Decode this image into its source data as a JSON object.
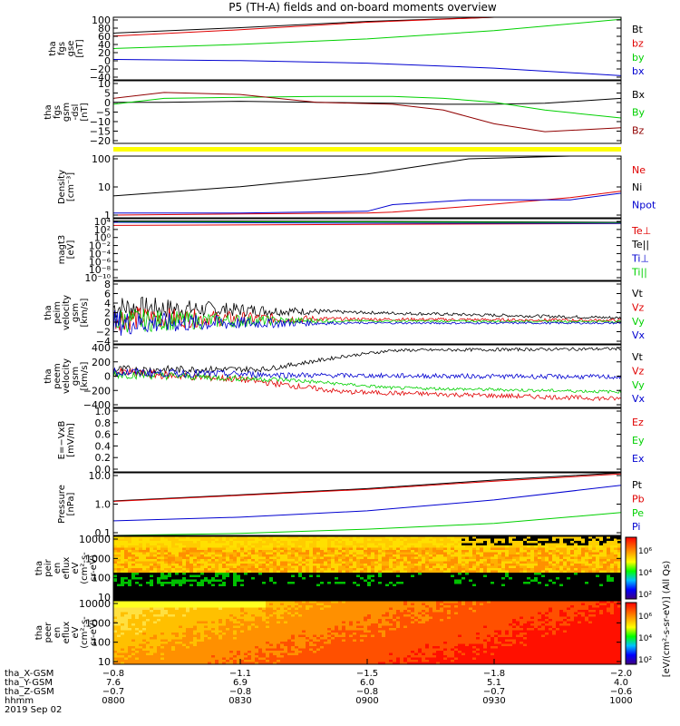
{
  "title": "P5 (TH-A) fields and on-board moments overview",
  "colors": {
    "black": "#000000",
    "red": "#e00000",
    "green": "#00d000",
    "blue": "#0000d0",
    "darkred": "#900000",
    "yellow": "#ffff00"
  },
  "chart_data": [
    {
      "id": "fgs_gse",
      "type": "line",
      "ylabel_lines": [
        "tha",
        "fgs",
        "gse",
        "[nT]"
      ],
      "yticks": [
        "100",
        "80",
        "60",
        "40",
        "20",
        "0",
        "−20",
        "−40"
      ],
      "ylim": [
        -50,
        100
      ],
      "x": [
        0,
        0.25,
        0.5,
        0.75,
        1.0
      ],
      "legend": [
        {
          "label": "Bt",
          "color": "black"
        },
        {
          "label": "bz",
          "color": "red"
        },
        {
          "label": "by",
          "color": "green"
        },
        {
          "label": "bx",
          "color": "blue"
        }
      ],
      "series": [
        {
          "color": "black",
          "values": [
            62,
            75,
            90,
            100,
            100
          ]
        },
        {
          "color": "red",
          "values": [
            55,
            70,
            88,
            100,
            100
          ]
        },
        {
          "color": "green",
          "values": [
            25,
            35,
            48,
            68,
            95
          ]
        },
        {
          "color": "blue",
          "values": [
            -1,
            -4,
            -10,
            -22,
            -40
          ]
        }
      ]
    },
    {
      "id": "fgs_gsm",
      "type": "line",
      "ylabel_lines": [
        "tha",
        "fgs",
        "gsm",
        "-dsl",
        "[nT]"
      ],
      "yticks": [
        "10",
        "5",
        "0",
        "−5",
        "−10",
        "−15",
        "−20"
      ],
      "ylim": [
        -22,
        10
      ],
      "x": [
        0,
        0.1,
        0.25,
        0.4,
        0.55,
        0.65,
        0.75,
        0.85,
        1.0
      ],
      "legend": [
        {
          "label": "Bx",
          "color": "black"
        },
        {
          "label": "By",
          "color": "green"
        },
        {
          "label": "Bz",
          "color": "darkred"
        }
      ],
      "series": [
        {
          "color": "black",
          "values": [
            -1,
            -1,
            -0.5,
            -1,
            -1.5,
            -2,
            -2,
            -1.5,
            1
          ]
        },
        {
          "color": "green",
          "values": [
            -2,
            1,
            1.5,
            2,
            2,
            1,
            -1,
            -5,
            -9
          ]
        },
        {
          "color": "darkred",
          "values": [
            1,
            4,
            3,
            -1,
            -2,
            -5,
            -12,
            -16,
            -14
          ]
        }
      ]
    },
    {
      "id": "quality_bar",
      "type": "bar_flag"
    },
    {
      "id": "density",
      "type": "line",
      "ylog": true,
      "ylabel_lines": [
        "Density",
        "[cm⁻³]"
      ],
      "yticks": [
        "100",
        "10",
        "1"
      ],
      "ylim": [
        0.3,
        200
      ],
      "x": [
        0,
        0.25,
        0.5,
        0.55,
        0.7,
        0.9,
        1.0
      ],
      "legend": [
        {
          "label": "Ne",
          "color": "red"
        },
        {
          "label": "Ni",
          "color": "black"
        },
        {
          "label": "Npot",
          "color": "blue"
        }
      ],
      "series": [
        {
          "color": "black",
          "values": [
            3,
            8,
            30,
            45,
            150,
            200,
            200
          ]
        },
        {
          "color": "red",
          "values": [
            0.4,
            0.45,
            0.5,
            0.55,
            1.0,
            2.5,
            5.0
          ]
        },
        {
          "color": "blue",
          "values": [
            0.5,
            0.5,
            0.6,
            1.2,
            2.0,
            2.0,
            4.0
          ]
        }
      ]
    },
    {
      "id": "temp",
      "type": "line",
      "ylog": true,
      "ylabel_lines": [
        "magt3",
        "[eV]"
      ],
      "yticks": [
        "10⁴",
        "10²",
        "10⁰",
        "10⁻²",
        "10⁻⁴",
        "10⁻⁶",
        "10⁻⁸",
        "10⁻¹⁰"
      ],
      "ylim": [
        1e-10,
        10000
      ],
      "x": [
        0,
        0.5,
        1.0
      ],
      "legend": [
        {
          "label": "Te⊥",
          "color": "red"
        },
        {
          "label": "Te||",
          "color": "black"
        },
        {
          "label": "Ti⊥",
          "color": "blue"
        },
        {
          "label": "Ti||",
          "color": "green"
        }
      ],
      "series": [
        {
          "color": "black",
          "values": [
            3000,
            2500,
            1500
          ]
        },
        {
          "color": "green",
          "values": [
            2000,
            1800,
            1200
          ]
        },
        {
          "color": "red",
          "values": [
            300,
            500,
            800
          ]
        },
        {
          "color": "blue",
          "values": [
            1500,
            1000,
            900
          ]
        }
      ]
    },
    {
      "id": "peim",
      "type": "noisy",
      "ylabel_lines": [
        "tha",
        "peim",
        "velocity",
        "gsm",
        "[km/s]"
      ],
      "yticks": [
        "8",
        "6",
        "4",
        "2",
        "0",
        "−2",
        "−4"
      ],
      "ylim": [
        -4,
        8
      ],
      "legend": [
        {
          "label": "Vt",
          "color": "black"
        },
        {
          "label": "Vz",
          "color": "red"
        },
        {
          "label": "Vy",
          "color": "green"
        },
        {
          "label": "Vx",
          "color": "blue"
        }
      ],
      "series": [
        {
          "color": "black",
          "start": 3.0,
          "end": 1.0,
          "noise": [
            2.5,
            0.3
          ]
        },
        {
          "color": "red",
          "start": 1.0,
          "end": 0.5,
          "noise": [
            2.5,
            0.3
          ]
        },
        {
          "color": "green",
          "start": 0.5,
          "end": 0.3,
          "noise": [
            2.5,
            0.2
          ]
        },
        {
          "color": "blue",
          "start": 0.0,
          "end": 0.0,
          "noise": [
            2.5,
            0.2
          ]
        }
      ]
    },
    {
      "id": "peem",
      "type": "noisy",
      "ylabel_lines": [
        "tha",
        "peem",
        "velocity",
        "gsm",
        "[km/s]"
      ],
      "yticks": [
        "400",
        "200",
        "0",
        "−200",
        "−400"
      ],
      "ylim": [
        -400,
        400
      ],
      "legend": [
        {
          "label": "Vt",
          "color": "black"
        },
        {
          "label": "Vz",
          "color": "red"
        },
        {
          "label": "Vy",
          "color": "green"
        },
        {
          "label": "Vx",
          "color": "blue"
        }
      ],
      "series": [
        {
          "color": "black",
          "profile": [
            [
              0,
              80
            ],
            [
              0.3,
              90
            ],
            [
              0.45,
              250
            ],
            [
              0.55,
              330
            ],
            [
              1.0,
              350
            ]
          ],
          "noise": [
            60,
            20
          ]
        },
        {
          "color": "red",
          "profile": [
            [
              0,
              50
            ],
            [
              0.25,
              -40
            ],
            [
              0.45,
              -200
            ],
            [
              1.0,
              -290
            ]
          ],
          "noise": [
            60,
            30
          ]
        },
        {
          "color": "green",
          "profile": [
            [
              0,
              30
            ],
            [
              0.35,
              -50
            ],
            [
              0.55,
              -150
            ],
            [
              1.0,
              -200
            ]
          ],
          "noise": [
            60,
            20
          ]
        },
        {
          "color": "blue",
          "profile": [
            [
              0,
              50
            ],
            [
              0.4,
              10
            ],
            [
              1.0,
              -10
            ]
          ],
          "noise": [
            60,
            30
          ]
        }
      ]
    },
    {
      "id": "efield",
      "type": "empty",
      "ylabel_lines": [
        "E=−VxB",
        "[mV/m]"
      ],
      "yticks": [
        "1.0",
        "0.8",
        "0.6",
        "0.4",
        "0.2",
        "0.0"
      ],
      "ylim": [
        0,
        1
      ],
      "legend": [
        {
          "label": "Ez",
          "color": "red"
        },
        {
          "label": "Ey",
          "color": "green"
        },
        {
          "label": "Ex",
          "color": "blue"
        }
      ]
    },
    {
      "id": "pressure",
      "type": "line",
      "ylog": true,
      "ylabel_lines": [
        "Pressure",
        "[nPa]"
      ],
      "yticks": [
        "10.0",
        "1.0",
        "0.1"
      ],
      "ylim": [
        0.04,
        40
      ],
      "x": [
        0,
        0.25,
        0.5,
        0.75,
        1.0
      ],
      "legend": [
        {
          "label": "Pt",
          "color": "black"
        },
        {
          "label": "Pb",
          "color": "red"
        },
        {
          "label": "Pe",
          "color": "green"
        },
        {
          "label": "Pi",
          "color": "blue"
        }
      ],
      "series": [
        {
          "color": "black",
          "values": [
            1.8,
            3.5,
            7,
            18,
            40
          ]
        },
        {
          "color": "red",
          "values": [
            1.7,
            3.3,
            6.5,
            16,
            35
          ]
        },
        {
          "color": "blue",
          "values": [
            0.2,
            0.3,
            0.6,
            2,
            10
          ]
        },
        {
          "color": "green",
          "values": [
            0.04,
            0.05,
            0.08,
            0.15,
            0.5
          ]
        }
      ]
    },
    {
      "id": "peir",
      "type": "spectrogram",
      "ylabel_lines": [
        "tha",
        "peir",
        "en",
        "eflux",
        "eV",
        "(cm²-s-",
        "sr-eV)"
      ],
      "yticks": [
        "10000",
        "1000",
        "100",
        "10"
      ],
      "ylim": [
        5,
        25000
      ]
    },
    {
      "id": "peer",
      "type": "spectrogram",
      "ylabel_lines": [
        "tha",
        "peer",
        "en",
        "eflux",
        "eV",
        "(cm²-s-",
        "sr-eV)"
      ],
      "yticks": [
        "10000",
        "1000",
        "100",
        "10"
      ],
      "ylim": [
        5,
        25000
      ]
    }
  ],
  "colorbar": {
    "ticks": [
      "10⁶",
      "10⁴",
      "10²"
    ],
    "label": "[eV/(cm²-s-sr-eV)] (All Qs)"
  },
  "xaxis": {
    "rows": [
      {
        "label": "tha_X-GSM",
        "values": [
          "−0.8",
          "−1.1",
          "−1.5",
          "−1.8",
          "−2.0"
        ]
      },
      {
        "label": "tha_Y-GSM",
        "values": [
          "7.6",
          "6.9",
          "6.0",
          "5.1",
          "4.0"
        ]
      },
      {
        "label": "tha_Z-GSM",
        "values": [
          "−0.7",
          "−0.8",
          "−0.8",
          "−0.7",
          "−0.6"
        ]
      },
      {
        "label": "hhmm",
        "values": [
          "0800",
          "0830",
          "0900",
          "0930",
          "1000"
        ]
      }
    ],
    "date": "2019 Sep 02"
  }
}
